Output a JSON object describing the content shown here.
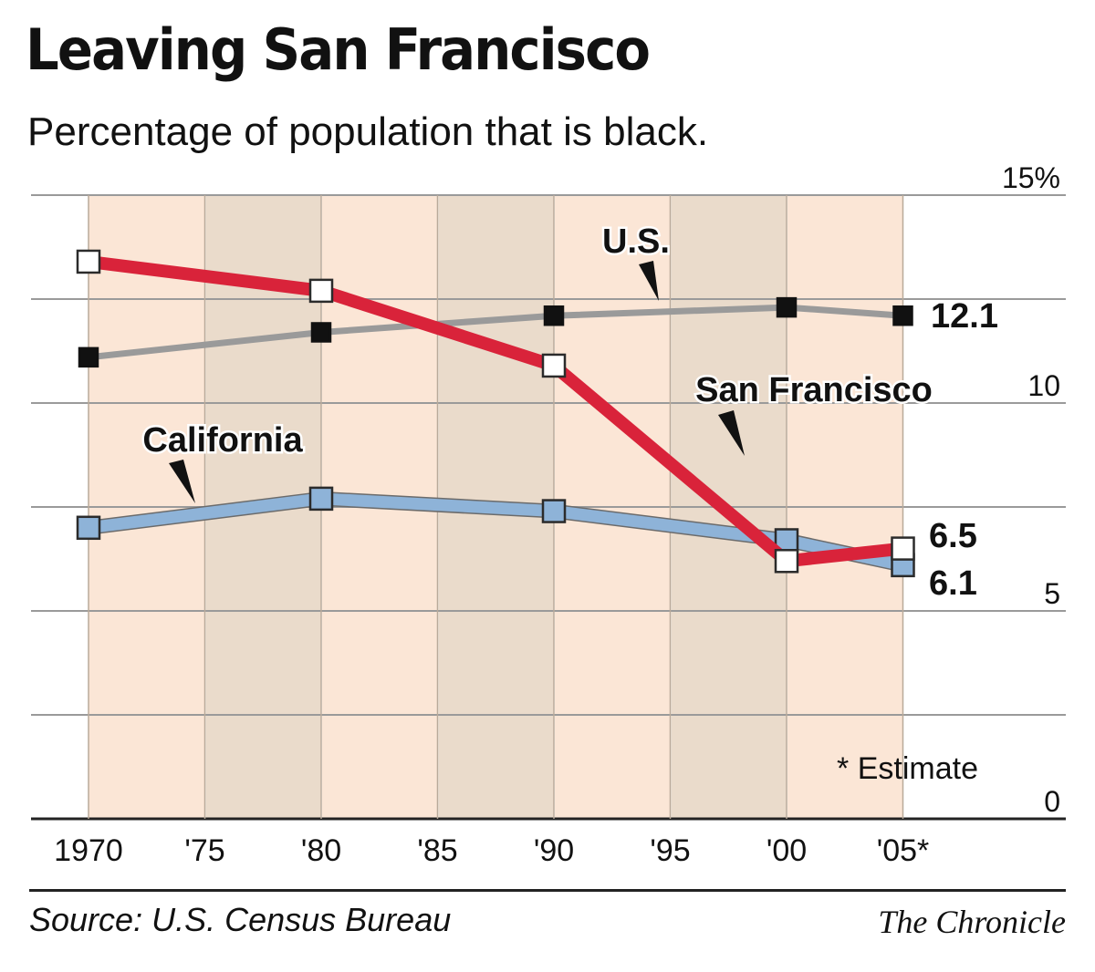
{
  "title": "Leaving San Francisco",
  "subtitle": "Percentage of population that is black.",
  "source": "Source: U.S. Census Bureau",
  "credit": "The Chronicle",
  "colors": {
    "san_francisco": "#d9233a",
    "us": "#9a9a9a",
    "california": "#8eb3d8",
    "band_light": "#fbe6d6",
    "band_dark": "#eadbcb"
  },
  "chart_data": {
    "type": "line",
    "x": [
      1970,
      1980,
      1990,
      2000,
      2005
    ],
    "x_ticks": [
      "1970",
      "'75",
      "'80",
      "'85",
      "'90",
      "'95",
      "'00",
      "'05*"
    ],
    "y_ticks": [
      "15%",
      "10",
      "5",
      "0"
    ],
    "ylim": [
      0,
      15
    ],
    "grid": true,
    "series": [
      {
        "name": "San Francisco",
        "key": "sf",
        "values": [
          13.4,
          12.7,
          10.9,
          6.2,
          6.5
        ],
        "end_label": "6.5"
      },
      {
        "name": "U.S.",
        "key": "us",
        "values": [
          11.1,
          11.7,
          12.1,
          12.3,
          12.1
        ],
        "end_label": "12.1"
      },
      {
        "name": "California",
        "key": "ca",
        "values": [
          7.0,
          7.7,
          7.4,
          6.7,
          6.1
        ],
        "end_label": "6.1"
      }
    ],
    "annotation": "* Estimate"
  }
}
